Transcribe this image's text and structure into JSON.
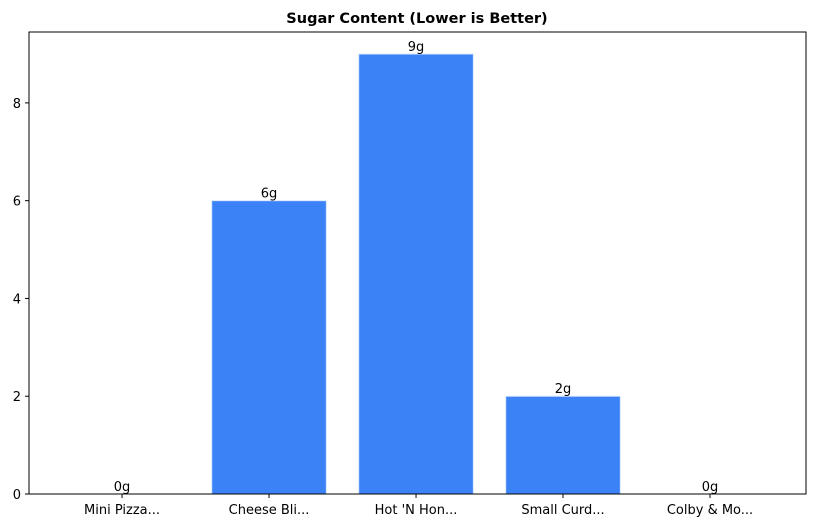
{
  "chart_data": {
    "type": "bar",
    "title": "Sugar Content (Lower is Better)",
    "categories": [
      "Mini Pizza...",
      "Cheese Bli...",
      "Hot 'N Hon...",
      "Small Curd...",
      "Colby & Mo..."
    ],
    "values": [
      0,
      6,
      9,
      2,
      0
    ],
    "value_labels": [
      "0g",
      "6g",
      "9g",
      "2g",
      "0g"
    ],
    "color": "#3b82f6",
    "ylim": [
      0,
      9.45
    ],
    "yticks": [
      0,
      2,
      4,
      6,
      8
    ],
    "grid": false
  }
}
